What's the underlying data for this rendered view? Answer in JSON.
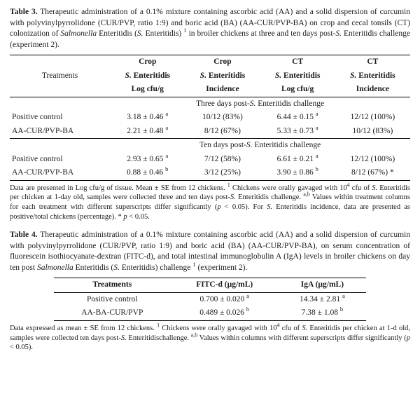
{
  "table3": {
    "caption_label": "Table 3.",
    "caption_html": "Therapeutic administration of a 0.1% mixture containing ascorbic acid (AA) and a solid dispersion of curcumin with polyvinylpyrrolidone (CUR/PVP, ratio 1:9) and boric acid (BA) (AA-CUR/PVP-BA) on crop and cecal tonsils (CT) colonization of <i>Salmonella</i> Enteritidis (<i>S.</i> Enteritidis) <sup>1</sup> in broiler chickens at three and ten days post-<i>S.</i> Enteritidis challenge (experiment 2).",
    "head": {
      "c0r1": "Treatments",
      "c1r0": "Crop",
      "c1r1_html": "<i>S.</i> Enteritidis",
      "c1r2": "Log cfu/g",
      "c2r0": "Crop",
      "c2r1_html": "<i>S.</i> Enteritidis",
      "c2r2": "Incidence",
      "c3r0": "CT",
      "c3r1_html": "<i>S.</i> Enteritidis",
      "c3r2": "Log cfu/g",
      "c4r0": "CT",
      "c4r1_html": "<i>S.</i> Enteritidis",
      "c4r2": "Incidence"
    },
    "section1_html": "Three days post-<i>S.</i> Enteritidis challenge",
    "rows1": [
      {
        "t": "Positive control",
        "c1_html": "3.18 ± 0.46 <sup>a</sup>",
        "c2": "10/12 (83%)",
        "c3_html": "6.44 ± 0.15 <sup>a</sup>",
        "c4": "12/12 (100%)"
      },
      {
        "t": "AA-CUR/PVP-BA",
        "c1_html": "2.21 ± 0.48 <sup>a</sup>",
        "c2": "8/12 (67%)",
        "c3_html": "5.33 ± 0.73 <sup>a</sup>",
        "c4": "10/12 (83%)"
      }
    ],
    "section2_html": "Ten days post-<i>S.</i> Enteritidis challenge",
    "rows2": [
      {
        "t": "Positive control",
        "c1_html": "2.93 ± 0.65 <sup>a</sup>",
        "c2": "7/12 (58%)",
        "c3_html": "6.61 ± 0.21 <sup>a</sup>",
        "c4": "12/12 (100%)"
      },
      {
        "t": "AA-CUR/PVP-BA",
        "c1_html": "0.88 ± 0.46 <sup>b</sup>",
        "c2": "3/12 (25%)",
        "c3_html": "3.90 ± 0.86 <sup>b</sup>",
        "c4": "8/12 (67%) *"
      }
    ],
    "footnote_html": "Data are presented in Log cfu/g of tissue. Mean ± SE from 12 chickens. <sup>1</sup> Chickens were orally gavaged with 10<sup>4</sup> cfu of <i>S.</i> Enteritidis per chicken at 1-day old, samples were collected three and ten days post-<i>S.</i> Enteritidis challenge. <sup>a,b</sup> Values within treatment columns for each treatment with different superscripts differ significantly (<i>p</i> < 0.05). For <i>S.</i> Enteritidis incidence, data are presented as positive/total chickens (percentage). * <i>p</i> < 0.05."
  },
  "table4": {
    "caption_label": "Table 4.",
    "caption_html": "Therapeutic administration of a 0.1% mixture containing ascorbic acid (AA) and a solid dispersion of curcumin with polyvinylpyrrolidone (CUR/PVP, ratio 1:9) and boric acid (BA) (AA-CUR/PVP-BA), on serum concentration of fluorescein isothiocyanate-dextran (FITC-d), and total intestinal immunoglobulin A (IgA) levels in broiler chickens on day ten post <i>Salmonella</i> Enteritidis (<i>S.</i> Enteritidis) challenge <sup>1</sup> (experiment 2).",
    "head": {
      "c0": "Treatments",
      "c1": "FITC-d (µg/mL)",
      "c2": "IgA (µg/mL)"
    },
    "rows": [
      {
        "t": "Positive control",
        "c1_html": "0.700 ± 0.020 <sup>a</sup>",
        "c2_html": "14.34 ± 2.81 <sup>a</sup>"
      },
      {
        "t": "AA-BA-CUR/PVP",
        "c1_html": "0.489 ± 0.026 <sup>b</sup>",
        "c2_html": "7.38 ± 1.08 <sup>b</sup>"
      }
    ],
    "footnote_html": "Data expressed as mean ± SE from 12 chickens. <sup>1</sup> Chickens were orally gavaged with 10<sup>4</sup> cfu of <i>S.</i> Enteritidis per chicken at 1-d old, samples were collected ten days post-<i>S.</i> Enteritidischallenge. <sup>a,b</sup> Values within columns with different superscripts differ significantly (<i>p</i> < 0.05)."
  }
}
